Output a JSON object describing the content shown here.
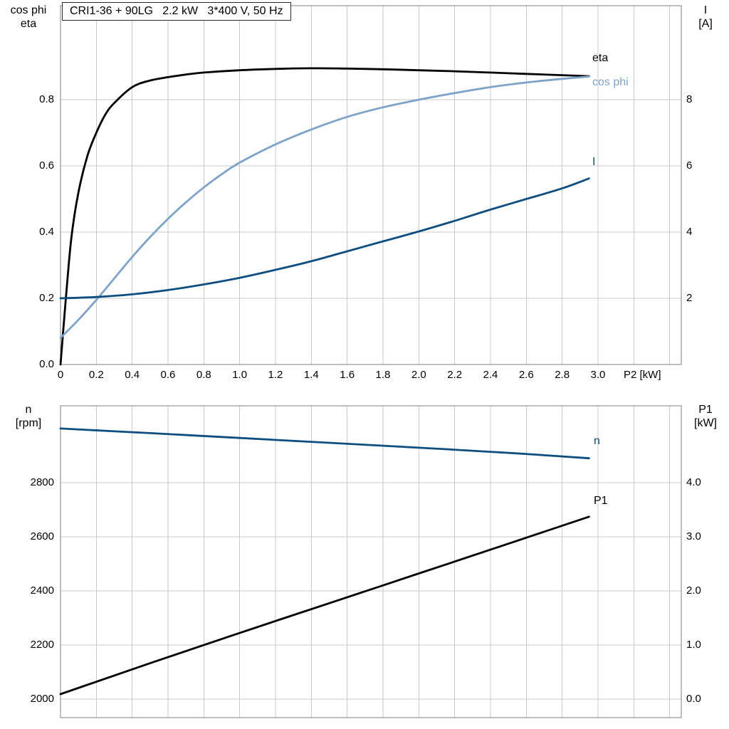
{
  "title": "CRI1-36 + 90LG   2.2 kW   3*400 V, 50 Hz",
  "axis_titles": {
    "chart1_left": [
      "cos phi",
      "eta"
    ],
    "chart1_right": [
      "I",
      "[A]"
    ],
    "chart1_x": "P2 [kW]",
    "chart2_left": [
      "n",
      "[rpm]"
    ],
    "chart2_right": [
      "P1",
      "[kW]"
    ]
  },
  "colors": {
    "grid": "#c9c9c9",
    "frame": "#7f7f7f",
    "black_curve": "#000000",
    "light_blue_curve": "#7ea3c9",
    "dark_blue_curve": "#0d4d7f"
  },
  "chart_data": [
    {
      "type": "line",
      "title": "CRI1-36 + 90LG  2.2 kW  3*400 V, 50 Hz",
      "xlabel": "P2 [kW]",
      "ylabel_left": "cos phi / eta",
      "ylabel_right": "I [A]",
      "xlim": [
        0,
        3.465
      ],
      "ylim_left": [
        0,
        1.084
      ],
      "ylim_right": [
        0,
        10.84
      ],
      "grid": true,
      "x_tick_values": [
        0,
        0.2,
        0.4,
        0.6,
        0.8,
        1.0,
        1.2,
        1.4,
        1.6,
        1.8,
        2.0,
        2.2,
        2.4,
        2.6,
        2.8,
        3.0
      ],
      "x_tick_labels": [
        "0",
        "0.2",
        "0.4",
        "0.6",
        "0.8",
        "1.0",
        "1.2",
        "1.4",
        "1.6",
        "1.8",
        "2.0",
        "2.2",
        "2.4",
        "2.6",
        "2.8",
        "3.0"
      ],
      "grid_x": [
        0.2,
        0.4,
        0.6,
        0.8,
        1.0,
        1.2,
        1.4,
        1.6,
        1.8,
        2.0,
        2.2,
        2.4,
        2.6,
        2.8,
        3.0,
        3.2,
        3.4
      ],
      "grid_y": [
        0.2,
        0.4,
        0.6,
        0.8
      ],
      "y_ticks_left": {
        "values": [
          0,
          0.2,
          0.4,
          0.6,
          0.8
        ],
        "labels": [
          "0.0",
          "0.2",
          "0.4",
          "0.6",
          "0.8"
        ]
      },
      "y_ticks_right": {
        "values": [
          2,
          4,
          6,
          8
        ],
        "labels": [
          "2",
          "4",
          "6",
          "8"
        ]
      },
      "series": [
        {
          "name": "eta",
          "axis": "left",
          "color": "#000000",
          "x": [
            0,
            0.03,
            0.06,
            0.1,
            0.15,
            0.2,
            0.25,
            0.3,
            0.4,
            0.5,
            0.6,
            0.7,
            0.8,
            1.0,
            1.2,
            1.4,
            1.6,
            1.8,
            2.0,
            2.2,
            2.4,
            2.6,
            2.8,
            2.95
          ],
          "y": [
            0,
            0.2,
            0.38,
            0.52,
            0.63,
            0.7,
            0.755,
            0.79,
            0.838,
            0.858,
            0.868,
            0.876,
            0.882,
            0.889,
            0.893,
            0.895,
            0.894,
            0.892,
            0.889,
            0.886,
            0.882,
            0.878,
            0.874,
            0.871
          ]
        },
        {
          "name": "cos phi",
          "axis": "left",
          "color": "#7ea3c9",
          "x": [
            0,
            0.1,
            0.2,
            0.3,
            0.4,
            0.5,
            0.6,
            0.7,
            0.8,
            0.9,
            1.0,
            1.2,
            1.4,
            1.6,
            1.8,
            2.0,
            2.2,
            2.4,
            2.6,
            2.8,
            2.95
          ],
          "y": [
            0.08,
            0.135,
            0.195,
            0.26,
            0.325,
            0.385,
            0.44,
            0.49,
            0.535,
            0.575,
            0.61,
            0.665,
            0.71,
            0.748,
            0.777,
            0.8,
            0.82,
            0.838,
            0.852,
            0.863,
            0.87
          ]
        },
        {
          "name": "I",
          "axis": "right",
          "color": "#0d4d7f",
          "x": [
            0,
            0.2,
            0.4,
            0.6,
            0.8,
            1.0,
            1.2,
            1.4,
            1.6,
            1.8,
            2.0,
            2.2,
            2.4,
            2.6,
            2.8,
            2.95
          ],
          "y": [
            2.0,
            2.04,
            2.12,
            2.25,
            2.42,
            2.62,
            2.86,
            3.12,
            3.42,
            3.72,
            4.02,
            4.34,
            4.68,
            5.0,
            5.32,
            5.62
          ]
        }
      ]
    },
    {
      "type": "line",
      "title": "",
      "xlabel": "P2 [kW]",
      "ylabel_left": "n [rpm]",
      "ylabel_right": "P1 [kW]",
      "xlim": [
        0,
        3.465
      ],
      "ylim_left": [
        1931,
        3084
      ],
      "ylim_right": [
        -0.345,
        5.42
      ],
      "grid": true,
      "x_tick_values": [],
      "x_tick_labels": [],
      "grid_x": [
        0.2,
        0.4,
        0.6,
        0.8,
        1.0,
        1.2,
        1.4,
        1.6,
        1.8,
        2.0,
        2.2,
        2.4,
        2.6,
        2.8,
        3.0,
        3.2,
        3.4
      ],
      "grid_y": [
        2000,
        2200,
        2400,
        2600,
        2800
      ],
      "y_ticks_left": {
        "values": [
          2000,
          2200,
          2400,
          2600,
          2800
        ],
        "labels": [
          "2000",
          "2200",
          "2400",
          "2600",
          "2800"
        ]
      },
      "y_ticks_right": {
        "values": [
          0,
          1,
          2,
          3,
          4
        ],
        "labels": [
          "0.0",
          "1.0",
          "2.0",
          "3.0",
          "4.0"
        ]
      },
      "series": [
        {
          "name": "n",
          "axis": "left",
          "color": "#0d4d7f",
          "x": [
            0,
            0.5,
            1.0,
            1.5,
            2.0,
            2.5,
            2.95
          ],
          "y": [
            3000,
            2983,
            2965,
            2947,
            2929,
            2910,
            2890
          ]
        },
        {
          "name": "P1",
          "axis": "right",
          "color": "#000000",
          "x": [
            0,
            0.5,
            1.0,
            1.5,
            2.0,
            2.5,
            2.95
          ],
          "y": [
            0.09,
            0.66,
            1.22,
            1.77,
            2.32,
            2.87,
            3.37
          ]
        }
      ]
    }
  ]
}
